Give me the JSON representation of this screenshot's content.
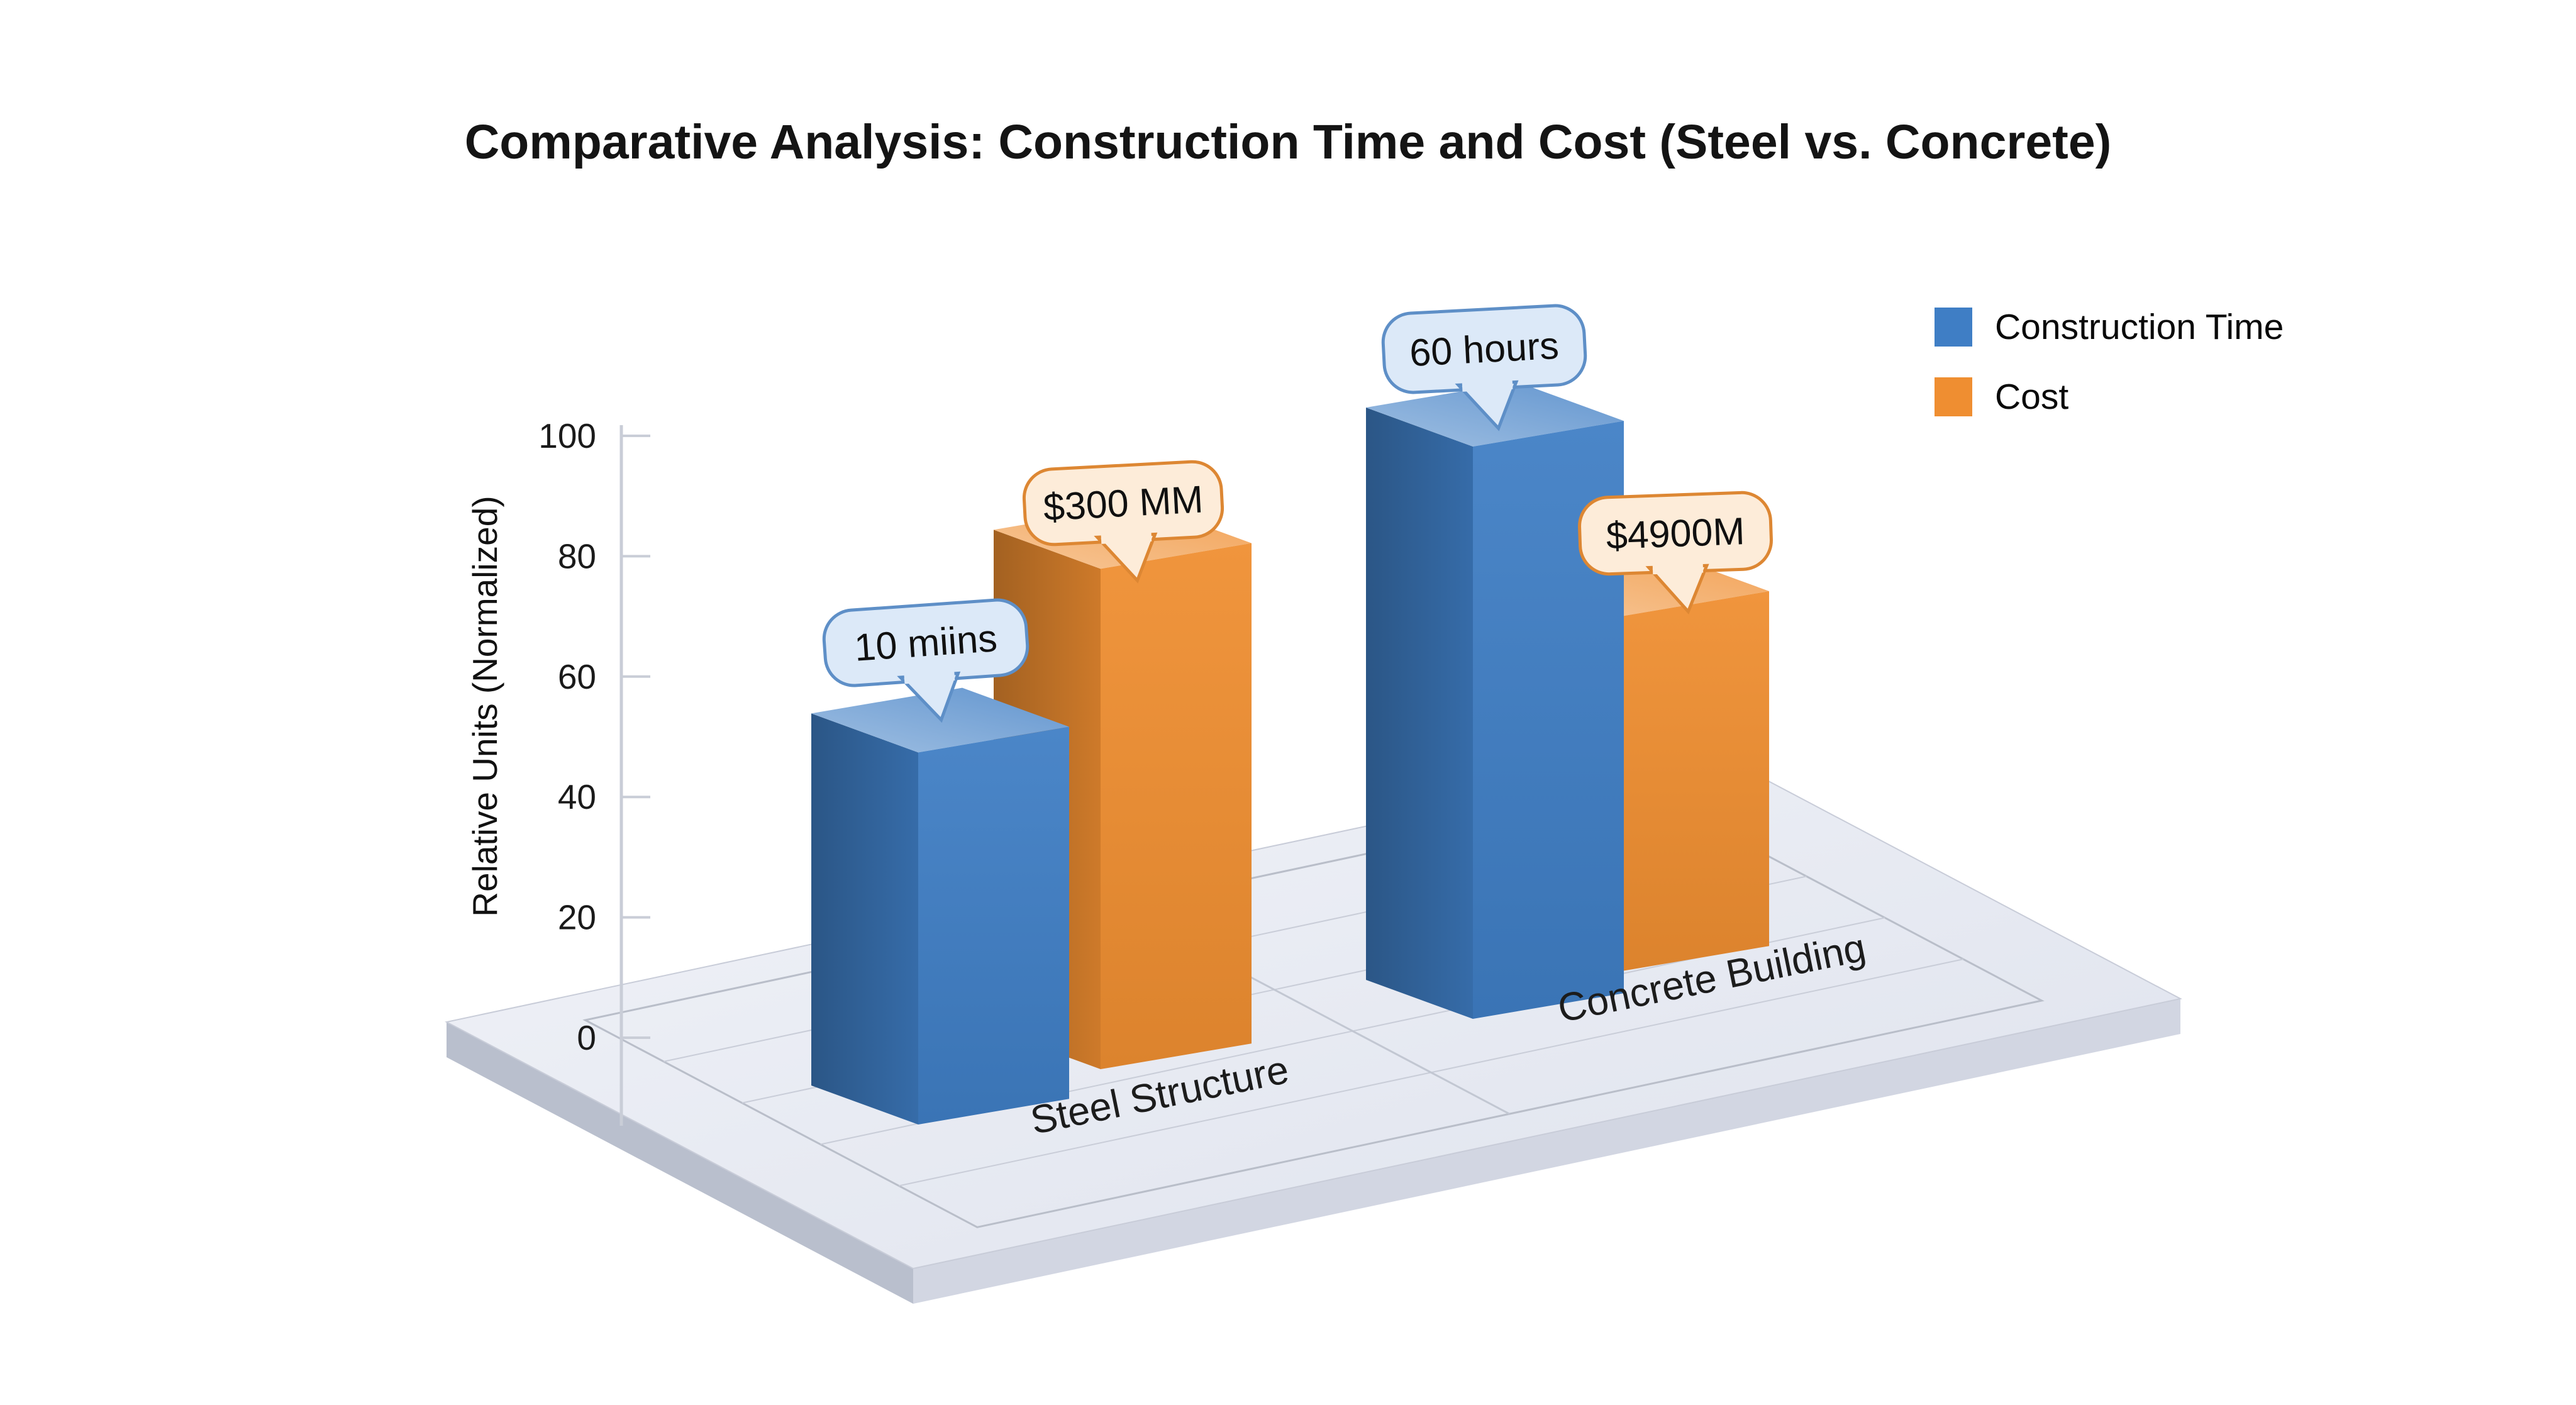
{
  "chart_data": {
    "type": "bar",
    "style": "3d",
    "title": "Comparative Analysis: Construction Time and Cost (Steel vs. Concrete)",
    "ylabel": "Relative Units (Normalized)",
    "ylim": [
      0,
      100
    ],
    "yticks": [
      0,
      20,
      40,
      60,
      80,
      100
    ],
    "categories": [
      "Steel Structure",
      "Concrete Building"
    ],
    "series": [
      {
        "name": "Construction Time",
        "color": "#3f7ec5",
        "values": [
          58,
          100
        ],
        "data_labels": [
          "10 miins",
          "60 hours"
        ]
      },
      {
        "name": "Cost",
        "color": "#ef8e31",
        "values": [
          78,
          62
        ],
        "data_labels": [
          "$300 MM",
          "$4900M"
        ]
      }
    ],
    "legend_position": "upper right",
    "grid": true,
    "floor_color": "#e8ebf2",
    "callout_styles": [
      {
        "fill": "#dce9f8",
        "border": "#5e8fc7"
      },
      {
        "fill": "#fdecd9",
        "border": "#dd8733"
      }
    ]
  }
}
